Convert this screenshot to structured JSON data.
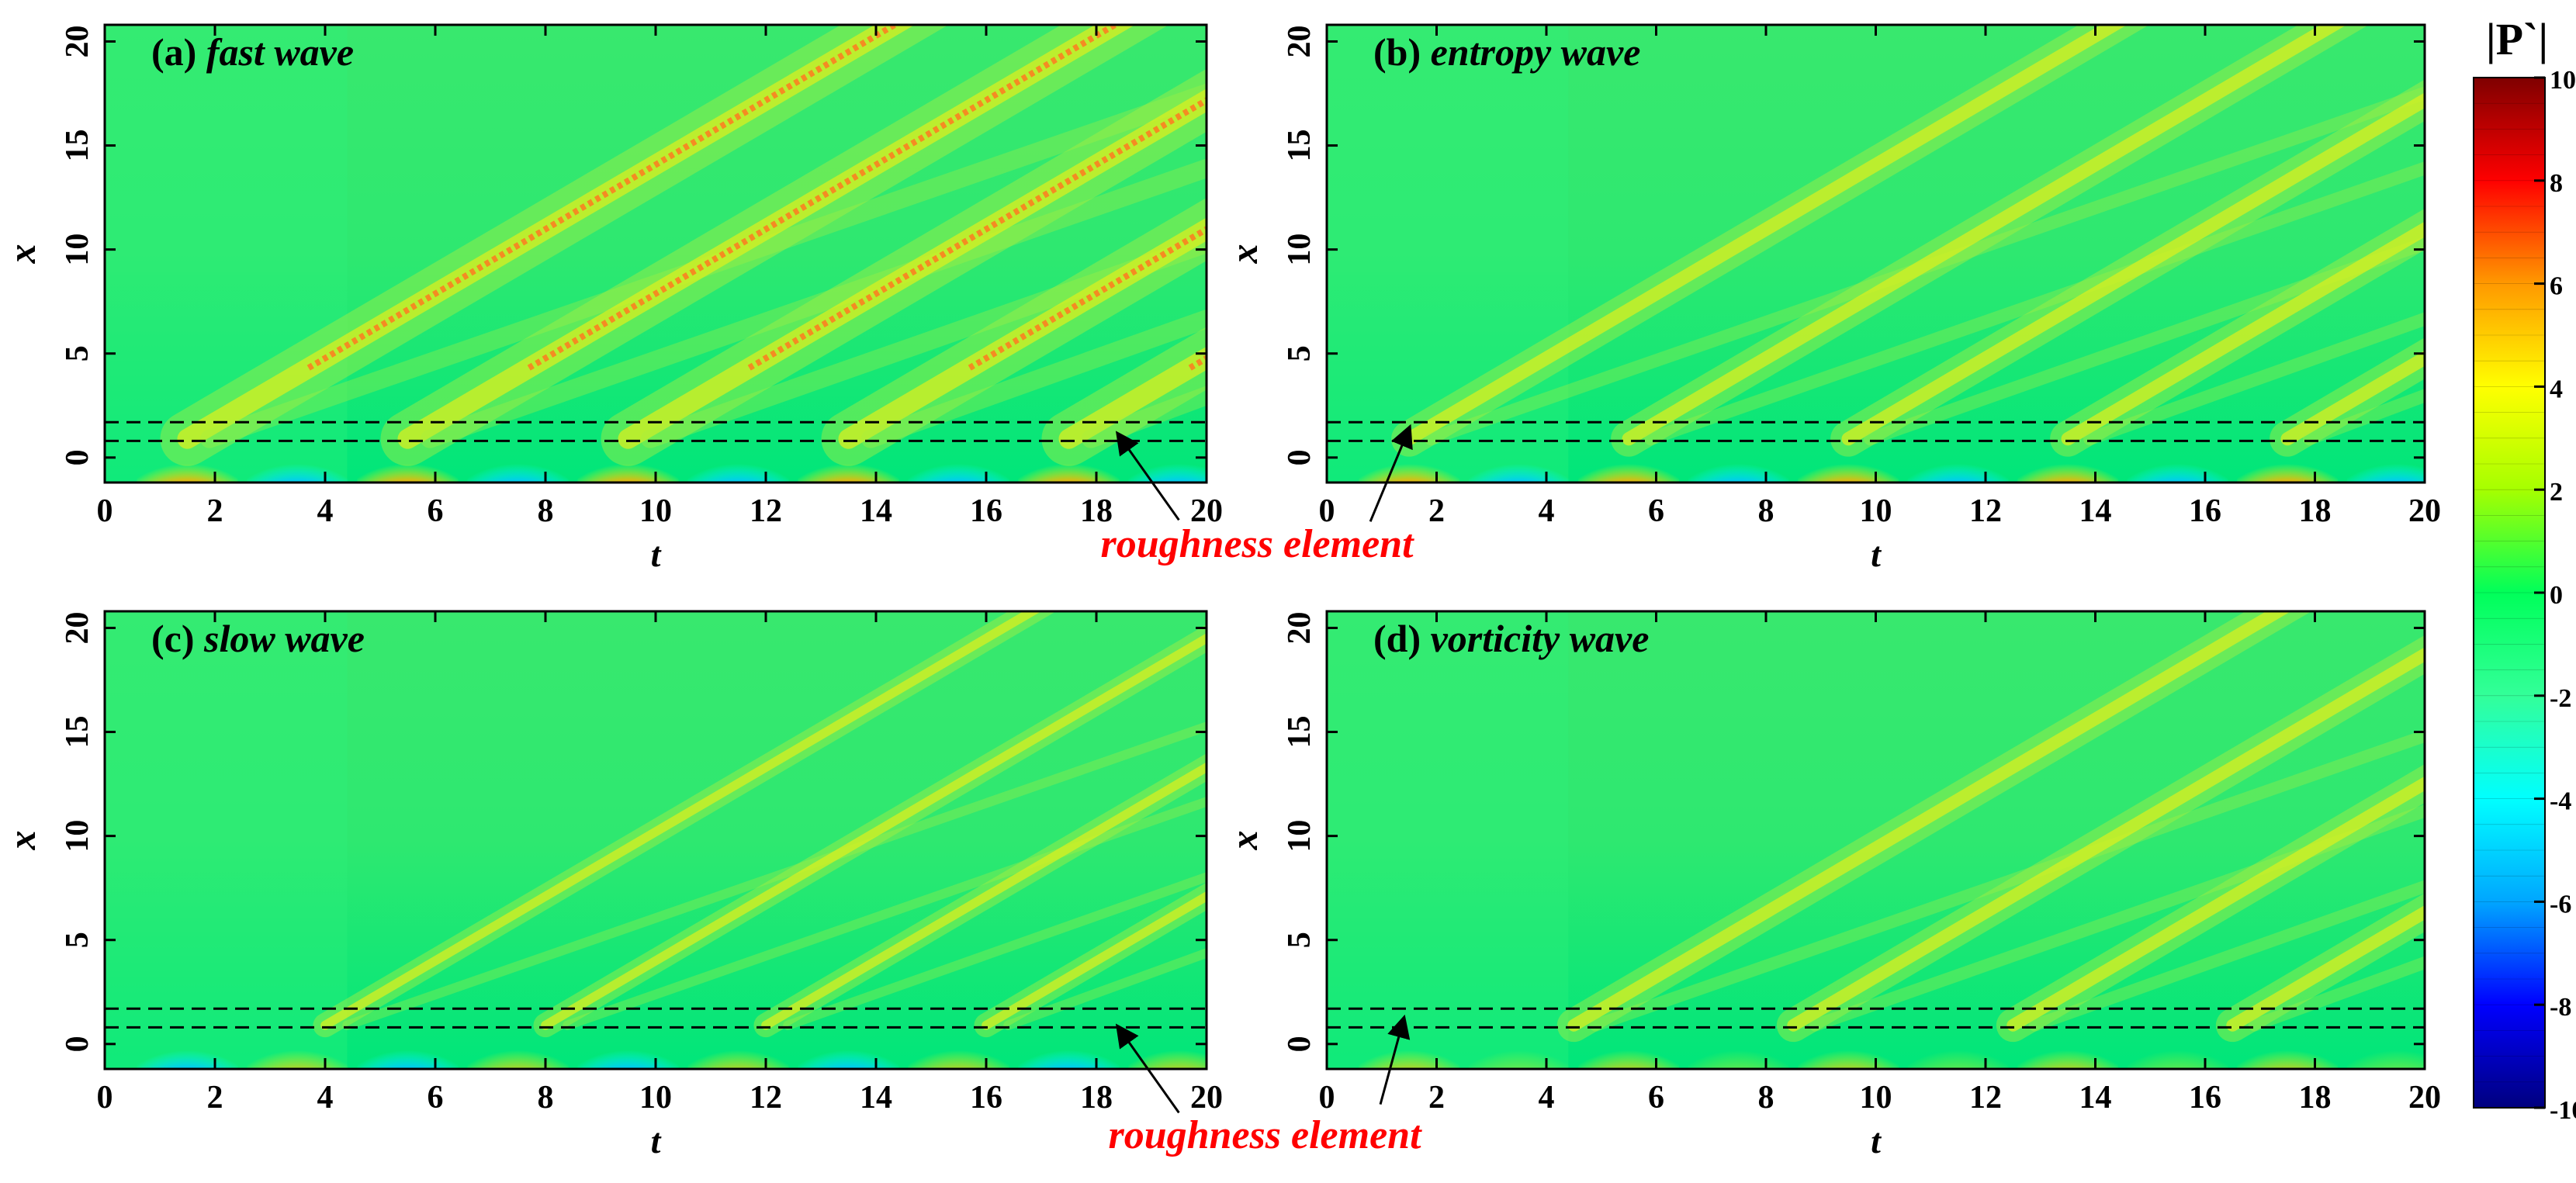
{
  "colorbar": {
    "title": "|P`|",
    "range": [
      -10,
      10
    ],
    "ticks": [
      "10",
      "8",
      "6",
      "4",
      "2",
      "0",
      "-2",
      "-4",
      "-6",
      "-8",
      "-10"
    ],
    "stops": [
      "#00007f",
      "#0000ff",
      "#00a6ff",
      "#00ffff",
      "#33ff99",
      "#00ff5a",
      "#a6ff00",
      "#ffff00",
      "#ff9900",
      "#ff0000",
      "#7f0000"
    ]
  },
  "annotations": {
    "roughness_label": "roughness element"
  },
  "chart_data": [
    {
      "type": "heatmap",
      "id": "a",
      "title": "(a) fast wave",
      "title_prefix": "(a)",
      "title_text": "fast wave",
      "xlabel": "t",
      "ylabel": "x",
      "xlim": [
        0,
        20
      ],
      "ylim": [
        -1.2,
        20.8
      ],
      "xticks": [
        0,
        2,
        4,
        6,
        8,
        10,
        12,
        14,
        16,
        18,
        20
      ],
      "yticks": [
        0,
        5,
        10,
        15,
        20
      ],
      "dashed_lines_x": [
        0.8,
        1.7
      ],
      "wave_period": 4,
      "wave_start": 1.5,
      "intensity": 1.0,
      "bottom_pattern": [
        "red",
        "blue"
      ],
      "strong_crest": true,
      "arrow": {
        "tip": [
          18.4,
          1.1
        ],
        "label_side": "right"
      }
    },
    {
      "type": "heatmap",
      "id": "b",
      "title": "(b) entropy wave",
      "title_prefix": "(b)",
      "title_text": "entropy wave",
      "xlabel": "t",
      "ylabel": "x",
      "xlim": [
        0,
        20
      ],
      "ylim": [
        -1.2,
        20.8
      ],
      "xticks": [
        0,
        2,
        4,
        6,
        8,
        10,
        12,
        14,
        16,
        18,
        20
      ],
      "yticks": [
        0,
        5,
        10,
        15,
        20
      ],
      "dashed_lines_x": [
        0.8,
        1.7
      ],
      "wave_period": 4,
      "wave_start": 1.5,
      "intensity": 0.6,
      "bottom_pattern": [
        "red",
        "blue"
      ],
      "strong_crest": false,
      "arrow": {
        "tip": [
          1.5,
          1.4
        ],
        "label_side": "left"
      }
    },
    {
      "type": "heatmap",
      "id": "c",
      "title": "(c) slow wave",
      "title_prefix": "(c)",
      "title_text": "slow wave",
      "xlabel": "t",
      "ylabel": "x",
      "xlim": [
        0,
        20
      ],
      "ylim": [
        -1.2,
        20.8
      ],
      "xticks": [
        0,
        2,
        4,
        6,
        8,
        10,
        12,
        14,
        16,
        18,
        20
      ],
      "yticks": [
        0,
        5,
        10,
        15,
        20
      ],
      "dashed_lines_x": [
        0.8,
        1.7
      ],
      "wave_period": 4,
      "wave_start": 4,
      "intensity": 0.35,
      "bottom_pattern": [
        "blue",
        "orange"
      ],
      "strong_crest": false,
      "arrow": {
        "tip": [
          18.4,
          0.8
        ],
        "label_side": "right"
      }
    },
    {
      "type": "heatmap",
      "id": "d",
      "title": "(d) vorticity wave",
      "title_prefix": "(d)",
      "title_text": "vorticity wave",
      "xlabel": "t",
      "ylabel": "x",
      "xlim": [
        0,
        20
      ],
      "ylim": [
        -1.2,
        20.8
      ],
      "xticks": [
        0,
        2,
        4,
        6,
        8,
        10,
        12,
        14,
        16,
        18,
        20
      ],
      "yticks": [
        0,
        5,
        10,
        15,
        20
      ],
      "dashed_lines_x": [
        0.8,
        1.7
      ],
      "wave_period": 4,
      "wave_start": 4.5,
      "intensity": 0.55,
      "bottom_pattern": [
        "orange",
        "yellow"
      ],
      "strong_crest": false,
      "arrow": {
        "tip": [
          1.4,
          1.2
        ],
        "label_side": "left"
      }
    }
  ]
}
